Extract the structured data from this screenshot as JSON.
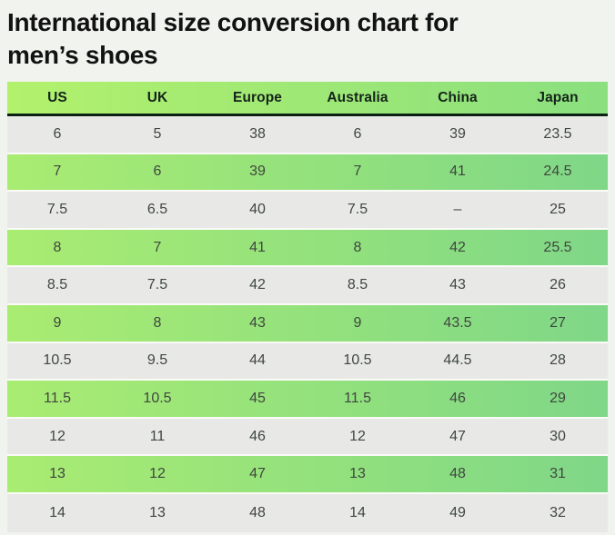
{
  "page": {
    "title_line1": "International size conversion chart for",
    "title_line2": "men’s shoes"
  },
  "table": {
    "columns": [
      "US",
      "UK",
      "Europe",
      "Australia",
      "China",
      "Japan"
    ],
    "rows": [
      [
        "6",
        "5",
        "38",
        "6",
        "39",
        "23.5"
      ],
      [
        "7",
        "6",
        "39",
        "7",
        "41",
        "24.5"
      ],
      [
        "7.5",
        "6.5",
        "40",
        "7.5",
        "–",
        "25"
      ],
      [
        "8",
        "7",
        "41",
        "8",
        "42",
        "25.5"
      ],
      [
        "8.5",
        "7.5",
        "42",
        "8.5",
        "43",
        "26"
      ],
      [
        "9",
        "8",
        "43",
        "9",
        "43.5",
        "27"
      ],
      [
        "10.5",
        "9.5",
        "44",
        "10.5",
        "44.5",
        "28"
      ],
      [
        "11.5",
        "10.5",
        "45",
        "11.5",
        "46",
        "29"
      ],
      [
        "12",
        "11",
        "46",
        "12",
        "47",
        "30"
      ],
      [
        "13",
        "12",
        "47",
        "13",
        "48",
        "31"
      ],
      [
        "14",
        "13",
        "48",
        "14",
        "49",
        "32"
      ]
    ]
  },
  "colors": {
    "page_background": "#f1f3ee",
    "title_text": "#121212",
    "header_gradient_left": "#b2f16c",
    "header_gradient_right": "#8adf7f",
    "header_text": "#15231a",
    "header_divider": "#0b2013",
    "row_gray": "#e8e9e6",
    "row_green_left": "#a9ec72",
    "row_green_right": "#7fd787",
    "row_separator": "#fafbf7",
    "cell_text": "#40463f"
  }
}
